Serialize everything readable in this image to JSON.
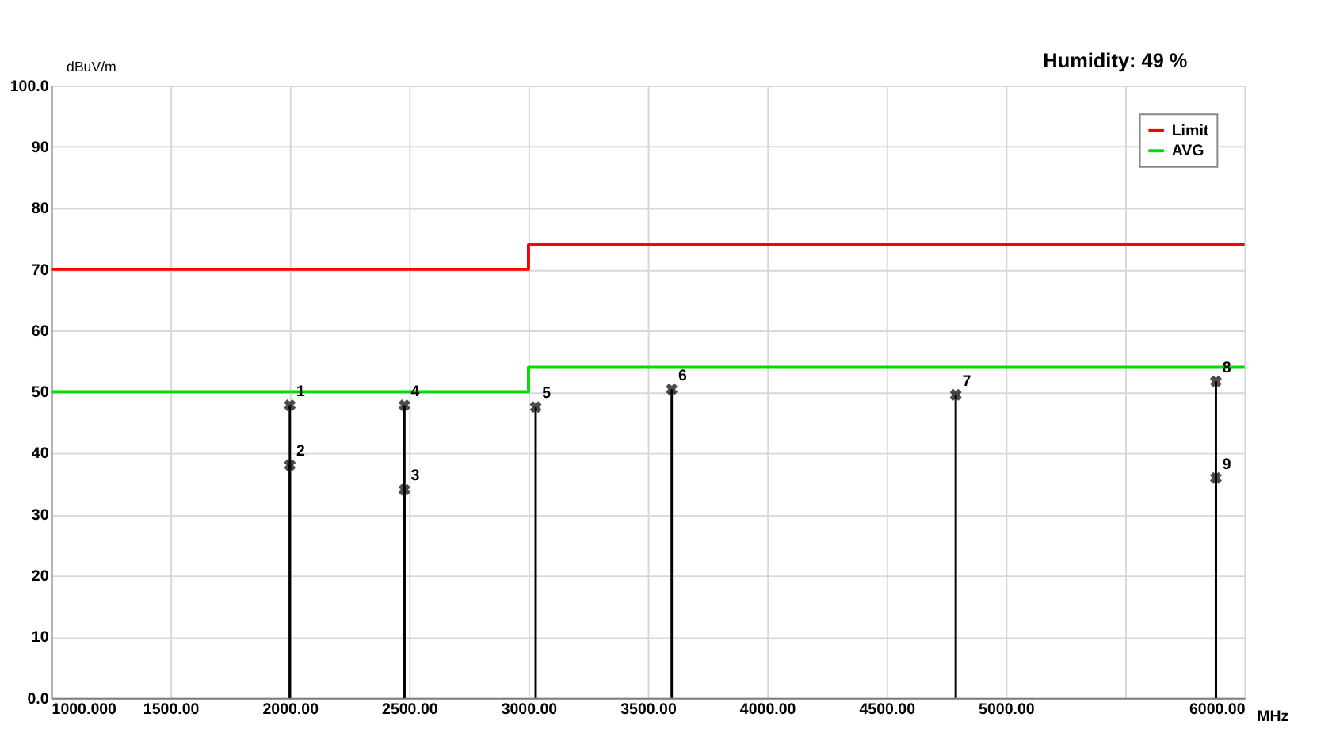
{
  "chart_data": {
    "type": "line",
    "xlabel": "MHz",
    "ylabel": "dBuV/m",
    "annotations": [
      "Humidity:   49 %",
      {
        "text": "1",
        "x": 2000,
        "y": 47.8
      },
      {
        "text": "2",
        "x": 2000,
        "y": 38
      },
      {
        "text": "3",
        "x": 2480,
        "y": 34
      },
      {
        "text": "4",
        "x": 2480,
        "y": 47.8
      },
      {
        "text": "5",
        "x": 3030,
        "y": 47.5
      },
      {
        "text": "6",
        "x": 3600,
        "y": 50.4
      },
      {
        "text": "7",
        "x": 4790,
        "y": 49.5
      },
      {
        "text": "8",
        "x": 5880,
        "y": 51.7
      },
      {
        "text": "9",
        "x": 5880,
        "y": 35.9
      }
    ],
    "xlim": [
      1000,
      6000
    ],
    "ylim": [
      0,
      100
    ],
    "xticks": [
      {
        "value": 1000,
        "label": "1000.000"
      },
      {
        "value": 1500,
        "label": "1500.00"
      },
      {
        "value": 2000,
        "label": "2000.00"
      },
      {
        "value": 2500,
        "label": "2500.00"
      },
      {
        "value": 3000,
        "label": "3000.00"
      },
      {
        "value": 3500,
        "label": "3500.00"
      },
      {
        "value": 4000,
        "label": "4000.00"
      },
      {
        "value": 4500,
        "label": "4500.00"
      },
      {
        "value": 5000,
        "label": "5000.00"
      },
      {
        "value": 5500,
        "label": null
      },
      {
        "value": 6000,
        "label": "6000.00"
      }
    ],
    "yticks": [
      {
        "value": 0,
        "label": "0.0"
      },
      10,
      20,
      30,
      40,
      50,
      60,
      70,
      80,
      90,
      {
        "value": 100,
        "label": "100.0"
      }
    ],
    "grid": true,
    "legend": "top right",
    "series": [
      {
        "name": "Limit",
        "color": "#ff0000",
        "x": [
          1000,
          3000,
          3000,
          6000
        ],
        "values": [
          70,
          70,
          74,
          74
        ]
      },
      {
        "name": "AVG",
        "color": "#00dd00",
        "x": [
          1000,
          3000,
          3000,
          6000
        ],
        "values": [
          50,
          50,
          54,
          54
        ]
      },
      {
        "color": "#000000",
        "type": "lollipop",
        "marker": "cross",
        "x": [
          2000,
          2000,
          2480,
          2480,
          3030,
          3600,
          4790,
          5880,
          5880
        ],
        "values": [
          47.8,
          38,
          34,
          47.8,
          47.5,
          50.4,
          49.5,
          51.7,
          35.9
        ]
      }
    ]
  }
}
